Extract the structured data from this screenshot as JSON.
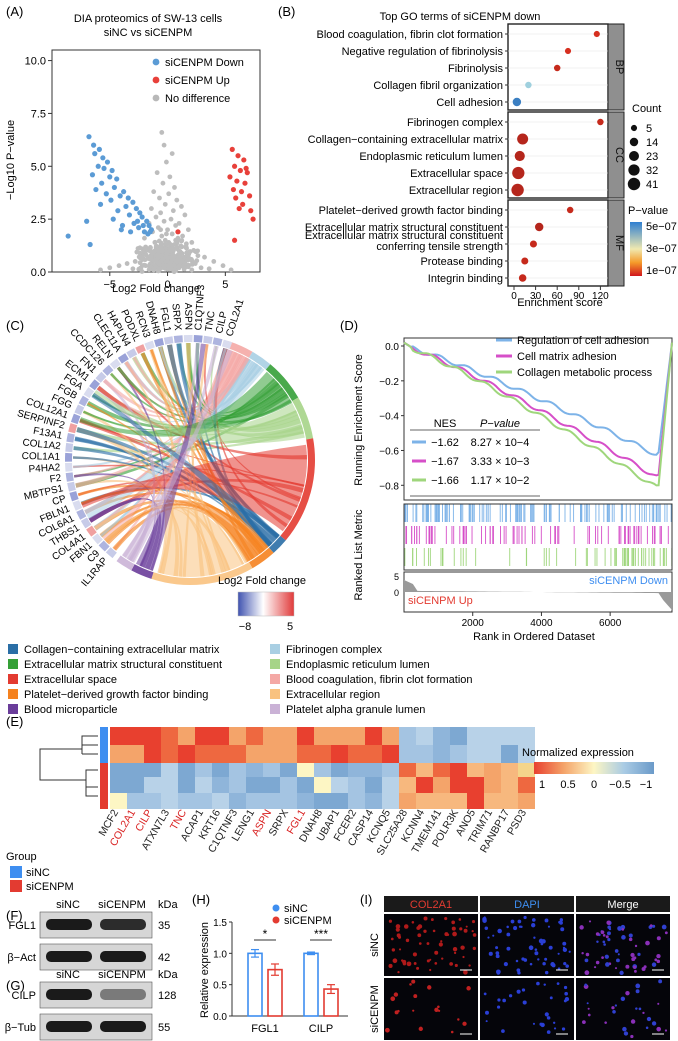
{
  "panelA": {
    "label": "(A)",
    "title": "DIA proteomics of SW-13 cells",
    "subtitle": "siNC vs siCENPM",
    "ylabel": "−Log10 P−value",
    "xlabel": "Log2 Fold change",
    "legend": [
      {
        "label": "siCENPM Down",
        "color": "#5b9bd5"
      },
      {
        "label": "siCENPM Up",
        "color": "#e8403a"
      },
      {
        "label": "No difference",
        "color": "#b8b8b8"
      }
    ],
    "chart_data": {
      "type": "scatter",
      "xlim": [
        -10,
        8
      ],
      "ylim": [
        0,
        10.5
      ],
      "xticks": [
        "−5",
        "0",
        "5"
      ],
      "yticks": [
        "0.0",
        "2.5",
        "5.0",
        "7.5",
        "10.0"
      ],
      "down": [
        [
          -6.8,
          6.4
        ],
        [
          -6.4,
          6.0
        ],
        [
          -5.9,
          5.8
        ],
        [
          -6.3,
          5.6
        ],
        [
          -5.6,
          5.4
        ],
        [
          -5.2,
          5.2
        ],
        [
          -6.0,
          5.0
        ],
        [
          -5.5,
          4.9
        ],
        [
          -4.8,
          4.8
        ],
        [
          -6.5,
          4.6
        ],
        [
          -5.0,
          4.5
        ],
        [
          -4.4,
          4.4
        ],
        [
          -5.7,
          4.2
        ],
        [
          -4.6,
          4.0
        ],
        [
          -6.2,
          3.9
        ],
        [
          -3.8,
          3.8
        ],
        [
          -5.3,
          3.7
        ],
        [
          -4.1,
          3.6
        ],
        [
          -3.4,
          3.5
        ],
        [
          -4.9,
          3.4
        ],
        [
          -3.0,
          3.3
        ],
        [
          -5.8,
          3.2
        ],
        [
          -3.6,
          3.1
        ],
        [
          -2.7,
          3.0
        ],
        [
          -4.3,
          2.9
        ],
        [
          -2.4,
          2.8
        ],
        [
          -3.3,
          2.7
        ],
        [
          -2.2,
          2.6
        ],
        [
          -4.7,
          2.5
        ],
        [
          -1.8,
          2.4
        ],
        [
          -2.9,
          2.3
        ],
        [
          -3.9,
          2.2
        ],
        [
          -1.6,
          2.2
        ],
        [
          -2.5,
          2.1
        ],
        [
          -1.4,
          2.0
        ],
        [
          -3.2,
          1.9
        ],
        [
          -2.0,
          1.9
        ],
        [
          -8.6,
          1.7
        ],
        [
          -1.7,
          1.8
        ],
        [
          -6.7,
          1.3
        ],
        [
          -7.0,
          2.4
        ],
        [
          -4.0,
          2.0
        ],
        [
          -2.6,
          2.4
        ],
        [
          -1.5,
          1.9
        ],
        [
          -2.1,
          2.2
        ]
      ],
      "up": [
        [
          5.6,
          5.8
        ],
        [
          6.1,
          5.5
        ],
        [
          6.6,
          5.3
        ],
        [
          5.8,
          5.0
        ],
        [
          6.3,
          4.8
        ],
        [
          6.9,
          4.7
        ],
        [
          5.4,
          4.5
        ],
        [
          6.0,
          4.3
        ],
        [
          6.7,
          4.2
        ],
        [
          5.7,
          3.9
        ],
        [
          6.4,
          3.8
        ],
        [
          7.1,
          3.6
        ],
        [
          5.9,
          3.5
        ],
        [
          6.5,
          3.2
        ],
        [
          7.2,
          2.9
        ],
        [
          6.2,
          3.0
        ],
        [
          7.4,
          2.5
        ],
        [
          5.8,
          1.5
        ],
        [
          0.9,
          1.9
        ],
        [
          6.8,
          4.9
        ]
      ],
      "nodiff": [
        [
          -0.5,
          6.6
        ],
        [
          -0.3,
          6.0
        ],
        [
          0.4,
          5.6
        ],
        [
          -0.1,
          5.2
        ],
        [
          -0.9,
          4.7
        ],
        [
          0.2,
          4.5
        ],
        [
          -0.4,
          4.2
        ],
        [
          0.6,
          4.0
        ],
        [
          -1.2,
          3.8
        ],
        [
          0.1,
          3.7
        ],
        [
          -0.7,
          3.5
        ],
        [
          0.8,
          3.4
        ],
        [
          -0.2,
          3.2
        ],
        [
          1.2,
          3.1
        ],
        [
          -1.4,
          3.0
        ],
        [
          0.5,
          2.9
        ],
        [
          -0.6,
          2.8
        ],
        [
          1.5,
          2.7
        ],
        [
          -1.0,
          2.6
        ],
        [
          0.3,
          2.5
        ],
        [
          -0.3,
          2.4
        ],
        [
          1.0,
          2.3
        ],
        [
          -1.6,
          2.3
        ],
        [
          0.7,
          2.2
        ],
        [
          -0.8,
          2.1
        ],
        [
          1.8,
          2.0
        ],
        [
          0.0,
          2.0
        ],
        [
          -1.3,
          1.9
        ],
        [
          0.4,
          1.8
        ],
        [
          -0.5,
          1.7
        ],
        [
          1.3,
          1.7
        ],
        [
          -2.0,
          1.6
        ],
        [
          0.9,
          1.6
        ],
        [
          -0.2,
          1.5
        ],
        [
          2.1,
          1.4
        ],
        [
          -1.1,
          1.4
        ],
        [
          0.6,
          1.3
        ],
        [
          -0.6,
          1.2
        ],
        [
          1.6,
          1.2
        ],
        [
          -1.8,
          1.1
        ],
        [
          0.2,
          1.1
        ],
        [
          2.6,
          1.0
        ],
        [
          -0.4,
          1.0
        ],
        [
          1.1,
          0.9
        ],
        [
          -2.4,
          0.9
        ],
        [
          0.5,
          0.8
        ],
        [
          -0.9,
          0.8
        ],
        [
          3.2,
          0.7
        ],
        [
          -0.1,
          0.7
        ],
        [
          1.9,
          0.6
        ],
        [
          -1.5,
          0.6
        ],
        [
          0.8,
          0.5
        ],
        [
          -2.8,
          0.5
        ],
        [
          4.0,
          0.5
        ],
        [
          -0.7,
          0.4
        ],
        [
          2.4,
          0.4
        ],
        [
          -3.5,
          0.4
        ],
        [
          1.4,
          0.3
        ],
        [
          -1.9,
          0.3
        ],
        [
          0.3,
          0.3
        ],
        [
          4.8,
          0.3
        ],
        [
          -4.2,
          0.3
        ],
        [
          2.9,
          0.2
        ],
        [
          -2.3,
          0.2
        ],
        [
          -0.3,
          0.2
        ],
        [
          1.0,
          0.2
        ],
        [
          -5.0,
          0.2
        ],
        [
          3.6,
          0.15
        ],
        [
          -3.0,
          0.15
        ],
        [
          0.6,
          0.1
        ],
        [
          -1.2,
          0.1
        ],
        [
          5.5,
          0.1
        ],
        [
          -5.8,
          0.1
        ],
        [
          2.1,
          0.1
        ],
        [
          -0.8,
          0.05
        ],
        [
          0.1,
          0.9
        ],
        [
          -0.2,
          1.3
        ],
        [
          0.2,
          1.0
        ],
        [
          -0.4,
          0.6
        ],
        [
          0.4,
          0.6
        ],
        [
          -0.1,
          1.8
        ],
        [
          0.1,
          1.4
        ],
        [
          0.0,
          0.5
        ],
        [
          -0.6,
          2.0
        ],
        [
          0.7,
          1.5
        ]
      ]
    }
  },
  "panelB": {
    "label": "(B)",
    "title": "Top GO terms of siCENPM down",
    "xlabel": "Enrichment score",
    "count_legend_title": "Count",
    "count_legend": [
      "5",
      "14",
      "23",
      "32",
      "41"
    ],
    "pval_legend_title": "P−value",
    "pval_legend": [
      "5e−07",
      "3e−07",
      "1e−07"
    ],
    "chart_data": {
      "type": "scatter",
      "xlim": [
        0,
        125
      ],
      "xticks": [
        0,
        30,
        60,
        90,
        120
      ],
      "groups": [
        {
          "name": "BP",
          "terms": [
            {
              "term": "Blood coagulation, fibrin clot formation",
              "score": 115,
              "count": 5,
              "color": "#d62f1f"
            },
            {
              "term": "Negative regulation of fibrinolysis",
              "score": 75,
              "count": 5,
              "color": "#d62f1f"
            },
            {
              "term": "Fibrinolysis",
              "score": 60,
              "count": 6,
              "color": "#c62a1c"
            },
            {
              "term": "Collagen fibril organization",
              "score": 20,
              "count": 6,
              "color": "#9fd0de"
            },
            {
              "term": "Cell adhesion",
              "score": 4,
              "count": 14,
              "color": "#3b7fc2"
            }
          ]
        },
        {
          "name": "CC",
          "terms": [
            {
              "term": "Fibrinogen complex",
              "score": 120,
              "count": 6,
              "color": "#c62a1c"
            },
            {
              "term": "Collagen−containing extracellular matrix",
              "score": 12,
              "count": 30,
              "color": "#b5261c"
            },
            {
              "term": "Endoplasmic reticulum lumen",
              "score": 8,
              "count": 24,
              "color": "#b5261c"
            },
            {
              "term": "Extracellular space",
              "score": 6,
              "count": 40,
              "color": "#b5261c"
            },
            {
              "term": "Extracellular region",
              "score": 5,
              "count": 41,
              "color": "#b5261c"
            }
          ]
        },
        {
          "name": "MF",
          "terms": [
            {
              "term": "Platelet−derived growth factor binding",
              "score": 78,
              "count": 6,
              "color": "#c62a1c"
            },
            {
              "term": "Extracellular matrix structural constituent",
              "score": 35,
              "count": 14,
              "color": "#b5261c"
            },
            {
              "term": "Extracellular matrix structural constituent conferring tensile strength",
              "score": 27,
              "count": 8,
              "color": "#c62a1c"
            },
            {
              "term": "Protease binding",
              "score": 15,
              "count": 8,
              "color": "#c62a1c"
            },
            {
              "term": "Integrin binding",
              "score": 12,
              "count": 10,
              "color": "#c62a1c"
            }
          ]
        }
      ]
    }
  },
  "panelC": {
    "label": "(C)",
    "fc_legend_title": "Log2 Fold change",
    "fc_legend_ticks": [
      "−8",
      "5"
    ],
    "genes": [
      "IL1RAP",
      "C9",
      "FBN1",
      "COL4A1",
      "THBS1",
      "COL6A1",
      "FBLN1",
      "CP",
      "MBTPS1",
      "F2",
      "P4HA2",
      "COL1A1",
      "COL1A2",
      "F13A1",
      "SERPINF2",
      "COL12A1",
      "FGG",
      "FGB",
      "FGA",
      "ECM1",
      "FN1",
      "CCDC126",
      "RELN",
      "CLEC11A",
      "HAPLN4",
      "PODXL",
      "RCN3",
      "DNAH8",
      "FGL1",
      "SRPX",
      "ASPN",
      "C1QTNF3",
      "TNC",
      "CILP",
      "COL2A1"
    ],
    "categories": [
      {
        "label": "Collagen−containing extracellular matrix",
        "color": "#2a6ea6"
      },
      {
        "label": "Fibrinogen complex",
        "color": "#a9cfe3"
      },
      {
        "label": "Extracellular matrix structural constituent",
        "color": "#35a037"
      },
      {
        "label": "Endoplasmic reticulum lumen",
        "color": "#a6d488"
      },
      {
        "label": "Extracellular space",
        "color": "#e33b31"
      },
      {
        "label": "Blood coagulation, fibrin clot formation",
        "color": "#f4a8a5"
      },
      {
        "label": "Platelet−derived growth factor binding",
        "color": "#f5821f"
      },
      {
        "label": "Extracellular region",
        "color": "#f9c280"
      },
      {
        "label": "Blood microparticle",
        "color": "#6a3d9a"
      },
      {
        "label": "Platelet alpha granule lumen",
        "color": "#cab2d6"
      }
    ]
  },
  "panelD": {
    "label": "(D)",
    "ylabel_top": "Running Enrichment Score",
    "ylabel_bottom": "Ranked List Metric",
    "xlabel": "Rank in Ordered Dataset",
    "down_label": "siCENPM Down",
    "up_label": "siCENPM Up",
    "nes_header": "NES",
    "p_header": "P−value",
    "chart_data": {
      "type": "line",
      "xlim": [
        0,
        7800
      ],
      "xticks": [
        2000,
        4000,
        6000
      ],
      "yticks": [
        "0.0",
        "−0.2",
        "−0.4",
        "−0.6",
        "−0.8"
      ],
      "series": [
        {
          "name": "Regulation of cell adhesion",
          "color": "#7db3e8",
          "nes": "−1.62",
          "p": "8.27 × 10−4"
        },
        {
          "name": "Cell matrix adhesion",
          "color": "#d64fc8",
          "nes": "−1.67",
          "p": "3.33 × 10−3"
        },
        {
          "name": "Collagen metabolic process",
          "color": "#9fd67c",
          "nes": "−1.66",
          "p": "1.17 × 10−2"
        }
      ]
    }
  },
  "panelE": {
    "label": "(E)",
    "legend_title": "Normalized expression",
    "legend_ticks": [
      "1",
      "0.5",
      "0",
      "−0.5",
      "−1"
    ],
    "group_title": "Group",
    "groups": [
      {
        "label": "siNC",
        "color": "#3e8ef0"
      },
      {
        "label": "siCENPM",
        "color": "#e33b31"
      }
    ],
    "genes": [
      {
        "name": "MCF2",
        "red": false
      },
      {
        "name": "COL2A1",
        "red": true
      },
      {
        "name": "CILP",
        "red": true
      },
      {
        "name": "ATXN7L3",
        "red": false
      },
      {
        "name": "TNC",
        "red": true
      },
      {
        "name": "ACAP1",
        "red": false
      },
      {
        "name": "KRT16",
        "red": false
      },
      {
        "name": "C1QTNF3",
        "red": false
      },
      {
        "name": "LENG1",
        "red": false
      },
      {
        "name": "ASPN",
        "red": true
      },
      {
        "name": "SRPX",
        "red": false
      },
      {
        "name": "FGL1",
        "red": true
      },
      {
        "name": "DNAH8",
        "red": false
      },
      {
        "name": "UBAP1",
        "red": false
      },
      {
        "name": "FCER2",
        "red": false
      },
      {
        "name": "CASP14",
        "red": false
      },
      {
        "name": "KCNQ5",
        "red": false
      },
      {
        "name": "SLC25A28",
        "red": false
      },
      {
        "name": "KCNN4",
        "red": false
      },
      {
        "name": "TMEM141",
        "red": false
      },
      {
        "name": "POLR3K",
        "red": false
      },
      {
        "name": "ANO5",
        "red": false
      },
      {
        "name": "TRIM71",
        "red": false
      },
      {
        "name": "RANBP17",
        "red": false
      },
      {
        "name": "PSD3",
        "red": false
      }
    ]
  },
  "panelF": {
    "label": "(F)",
    "kda": "kDa",
    "lanes": [
      "siNC",
      "siCENPM"
    ],
    "rows": [
      {
        "name": "FGL1",
        "kda": "35"
      },
      {
        "name": "β−Act",
        "kda": "42"
      }
    ]
  },
  "panelG": {
    "label": "(G)",
    "kda": "kDa",
    "lanes": [
      "siNC",
      "siCENPM"
    ],
    "rows": [
      {
        "name": "CILP",
        "kda": "128"
      },
      {
        "name": "β−Tub",
        "kda": "55"
      }
    ]
  },
  "panelH": {
    "label": "(H)",
    "ylabel": "Relative expression",
    "legend": [
      {
        "label": "siNC",
        "color": "#3e8ef0"
      },
      {
        "label": "siCENPM",
        "color": "#e33b31"
      }
    ],
    "chart_data": {
      "type": "bar",
      "categories": [
        "FGL1",
        "CILP"
      ],
      "series": [
        {
          "name": "siNC",
          "values": [
            1.0,
            1.0
          ],
          "errors": [
            0.06,
            0.02
          ]
        },
        {
          "name": "siCENPM",
          "values": [
            0.74,
            0.43
          ],
          "errors": [
            0.09,
            0.07
          ]
        }
      ],
      "ylim": [
        0,
        1.5
      ],
      "yticks": [
        "0.0",
        "0.5",
        "1.0",
        "1.5"
      ],
      "significance": [
        "*",
        "***"
      ]
    }
  },
  "panelI": {
    "label": "(I)",
    "columns": [
      "COL2A1",
      "DAPI",
      "Merge"
    ],
    "rows": [
      "siNC",
      "siCENPM"
    ]
  }
}
